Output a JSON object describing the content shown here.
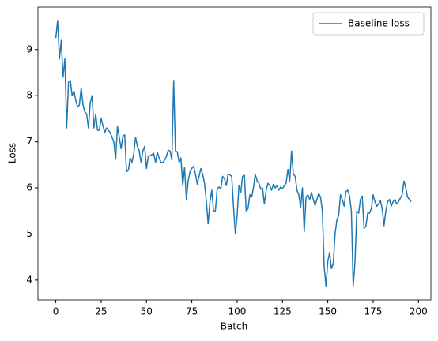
{
  "chart_data": {
    "type": "line",
    "xlabel": "Batch",
    "ylabel": "Loss",
    "series": [
      {
        "name": "Baseline loss",
        "color": "#1f77b4",
        "values": [
          9.25,
          9.63,
          8.8,
          9.2,
          8.4,
          8.8,
          7.3,
          8.3,
          8.33,
          8.0,
          8.1,
          7.9,
          7.75,
          7.8,
          8.17,
          7.8,
          7.65,
          7.6,
          7.3,
          7.85,
          8.0,
          7.3,
          7.6,
          7.25,
          7.25,
          7.5,
          7.35,
          7.2,
          7.3,
          7.25,
          7.2,
          7.1,
          7.0,
          6.62,
          7.33,
          7.1,
          6.85,
          7.12,
          7.15,
          6.35,
          6.38,
          6.65,
          6.55,
          6.75,
          7.1,
          6.9,
          6.8,
          6.55,
          6.8,
          6.9,
          6.42,
          6.68,
          6.7,
          6.72,
          6.75,
          6.55,
          6.77,
          6.65,
          6.55,
          6.55,
          6.6,
          6.68,
          6.82,
          6.8,
          6.6,
          8.33,
          6.8,
          6.78,
          6.55,
          6.65,
          6.05,
          6.45,
          5.75,
          6.15,
          6.35,
          6.42,
          6.47,
          6.3,
          6.08,
          6.25,
          6.42,
          6.3,
          6.1,
          5.72,
          5.22,
          5.7,
          5.95,
          5.5,
          5.5,
          5.97,
          6.02,
          5.98,
          6.25,
          6.2,
          6.05,
          6.3,
          6.28,
          6.25,
          5.6,
          5.0,
          5.4,
          6.05,
          5.9,
          6.25,
          6.28,
          5.5,
          5.55,
          5.85,
          5.8,
          6.0,
          6.3,
          6.15,
          6.1,
          5.97,
          6.0,
          5.65,
          5.95,
          6.1,
          6.05,
          5.95,
          6.08,
          6.0,
          6.05,
          5.95,
          6.02,
          5.98,
          6.05,
          6.1,
          6.4,
          6.15,
          6.8,
          6.3,
          6.25,
          5.95,
          5.85,
          5.58,
          6.0,
          5.05,
          5.8,
          5.85,
          5.75,
          5.9,
          5.75,
          5.62,
          5.75,
          5.88,
          5.8,
          5.5,
          4.3,
          3.87,
          4.4,
          4.6,
          4.25,
          4.35,
          5.0,
          5.3,
          5.4,
          5.85,
          5.75,
          5.6,
          5.92,
          5.95,
          5.82,
          5.5,
          3.87,
          4.4,
          5.5,
          5.45,
          5.75,
          5.82,
          5.12,
          5.17,
          5.45,
          5.45,
          5.55,
          5.85,
          5.7,
          5.6,
          5.65,
          5.72,
          5.55,
          5.18,
          5.5,
          5.7,
          5.75,
          5.6,
          5.7,
          5.75,
          5.65,
          5.7,
          5.78,
          5.85,
          6.15,
          6.0,
          5.8,
          5.75,
          5.7
        ]
      }
    ],
    "xlim": [
      -9.85,
      206.85
    ],
    "xticks": [
      0,
      25,
      50,
      75,
      100,
      125,
      150,
      175,
      200
    ],
    "ylim": [
      3.57,
      9.92
    ],
    "yticks": [
      4,
      5,
      6,
      7,
      8,
      9
    ],
    "legend": "upper right"
  }
}
